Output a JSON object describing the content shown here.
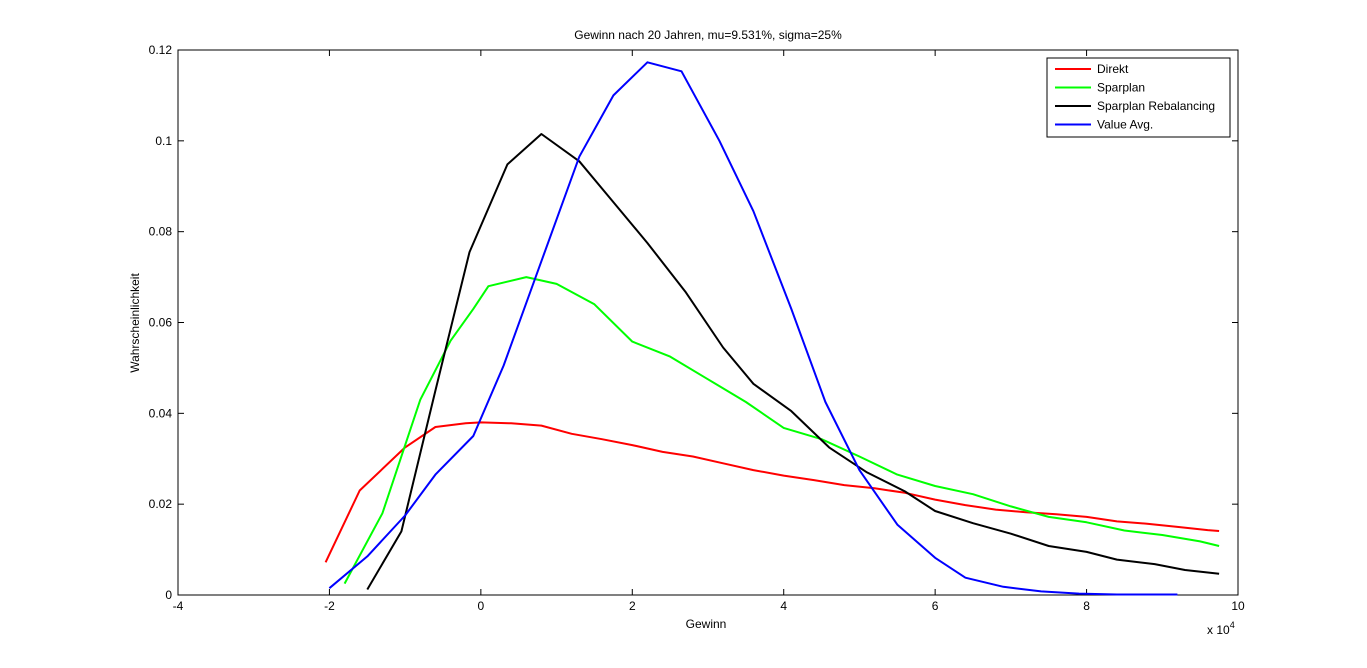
{
  "chart_data": {
    "type": "line",
    "title": "Gewinn nach 20 Jahren, mu=9.531%, sigma=25%",
    "xlabel": "Gewinn",
    "ylabel": "Wahrscheinlichkeit",
    "x_exponent_label": "x 10",
    "x_exponent_power": "4",
    "xlim": [
      -4,
      10
    ],
    "ylim": [
      0,
      0.12
    ],
    "xticks": [
      -4,
      -2,
      0,
      2,
      4,
      6,
      8,
      10
    ],
    "yticks": [
      0,
      0.02,
      0.04,
      0.06,
      0.08,
      0.1,
      0.12
    ],
    "xtick_labels": [
      "-4",
      "-2",
      "0",
      "2",
      "4",
      "6",
      "8",
      "10"
    ],
    "ytick_labels": [
      "0",
      "0.02",
      "0.04",
      "0.06",
      "0.08",
      "0.1",
      "0.12"
    ],
    "grid": false,
    "legend_position": "top-right",
    "series": [
      {
        "name": "Direkt",
        "color": "#ff0000",
        "points": [
          [
            -2.05,
            0.0072
          ],
          [
            -1.6,
            0.023
          ],
          [
            -1.0,
            0.0325
          ],
          [
            -0.6,
            0.037
          ],
          [
            -0.2,
            0.0378
          ],
          [
            0.0,
            0.038
          ],
          [
            0.4,
            0.0378
          ],
          [
            0.8,
            0.0373
          ],
          [
            1.2,
            0.0355
          ],
          [
            1.6,
            0.0343
          ],
          [
            2.0,
            0.033
          ],
          [
            2.4,
            0.0315
          ],
          [
            2.8,
            0.0305
          ],
          [
            3.2,
            0.029
          ],
          [
            3.6,
            0.0275
          ],
          [
            4.0,
            0.0263
          ],
          [
            4.4,
            0.0253
          ],
          [
            4.8,
            0.0242
          ],
          [
            5.2,
            0.0235
          ],
          [
            5.6,
            0.0225
          ],
          [
            6.0,
            0.021
          ],
          [
            6.4,
            0.0198
          ],
          [
            6.8,
            0.0188
          ],
          [
            7.2,
            0.0182
          ],
          [
            7.6,
            0.0178
          ],
          [
            8.0,
            0.0172
          ],
          [
            8.4,
            0.0162
          ],
          [
            8.8,
            0.0157
          ],
          [
            9.2,
            0.015
          ],
          [
            9.6,
            0.0143
          ],
          [
            9.75,
            0.0141
          ]
        ]
      },
      {
        "name": "Sparplan",
        "color": "#00ff00",
        "points": [
          [
            -1.8,
            0.0025
          ],
          [
            -1.3,
            0.018
          ],
          [
            -0.8,
            0.043
          ],
          [
            -0.4,
            0.056
          ],
          [
            -0.1,
            0.063
          ],
          [
            0.1,
            0.068
          ],
          [
            0.6,
            0.07
          ],
          [
            1.0,
            0.0685
          ],
          [
            1.5,
            0.064
          ],
          [
            2.0,
            0.0558
          ],
          [
            2.5,
            0.0525
          ],
          [
            3.0,
            0.0475
          ],
          [
            3.5,
            0.0425
          ],
          [
            4.0,
            0.0368
          ],
          [
            4.5,
            0.0343
          ],
          [
            5.0,
            0.0305
          ],
          [
            5.5,
            0.0265
          ],
          [
            6.0,
            0.024
          ],
          [
            6.5,
            0.0222
          ],
          [
            7.0,
            0.0195
          ],
          [
            7.5,
            0.0172
          ],
          [
            8.0,
            0.016
          ],
          [
            8.5,
            0.0142
          ],
          [
            9.0,
            0.0132
          ],
          [
            9.5,
            0.0118
          ],
          [
            9.75,
            0.0108
          ]
        ]
      },
      {
        "name": "Sparplan Rebalancing",
        "color": "#000000",
        "points": [
          [
            -1.5,
            0.0012
          ],
          [
            -1.05,
            0.014
          ],
          [
            -0.6,
            0.045
          ],
          [
            -0.15,
            0.0755
          ],
          [
            0.35,
            0.0948
          ],
          [
            0.8,
            0.1015
          ],
          [
            1.3,
            0.0955
          ],
          [
            1.7,
            0.0875
          ],
          [
            2.2,
            0.0775
          ],
          [
            2.7,
            0.0668
          ],
          [
            3.2,
            0.0545
          ],
          [
            3.6,
            0.0465
          ],
          [
            4.1,
            0.0405
          ],
          [
            4.6,
            0.0325
          ],
          [
            5.1,
            0.027
          ],
          [
            5.6,
            0.0228
          ],
          [
            6.0,
            0.0185
          ],
          [
            6.5,
            0.0158
          ],
          [
            7.0,
            0.0135
          ],
          [
            7.5,
            0.0108
          ],
          [
            8.0,
            0.0095
          ],
          [
            8.4,
            0.0078
          ],
          [
            8.9,
            0.0068
          ],
          [
            9.3,
            0.0055
          ],
          [
            9.75,
            0.0047
          ]
        ]
      },
      {
        "name": "Value Avg.",
        "color": "#0000ff",
        "points": [
          [
            -2.0,
            0.0015
          ],
          [
            -1.5,
            0.0085
          ],
          [
            -1.0,
            0.0175
          ],
          [
            -0.6,
            0.0265
          ],
          [
            -0.1,
            0.035
          ],
          [
            0.3,
            0.0505
          ],
          [
            0.8,
            0.0735
          ],
          [
            1.3,
            0.0965
          ],
          [
            1.75,
            0.11
          ],
          [
            2.2,
            0.1173
          ],
          [
            2.65,
            0.1153
          ],
          [
            3.15,
            0.1
          ],
          [
            3.6,
            0.0845
          ],
          [
            4.1,
            0.063
          ],
          [
            4.55,
            0.0425
          ],
          [
            5.0,
            0.0275
          ],
          [
            5.5,
            0.0155
          ],
          [
            6.0,
            0.0082
          ],
          [
            6.4,
            0.0038
          ],
          [
            6.9,
            0.0018
          ],
          [
            7.4,
            0.0008
          ],
          [
            7.9,
            0.0003
          ],
          [
            8.4,
            0.0001
          ],
          [
            9.2,
            0.0001
          ]
        ]
      }
    ]
  }
}
